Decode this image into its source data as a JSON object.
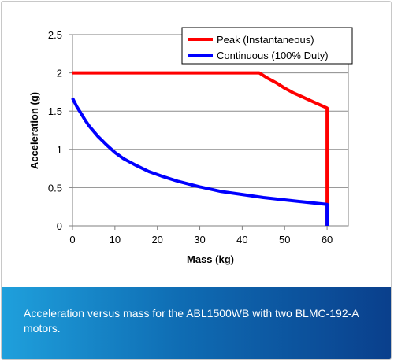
{
  "caption": "Acceleration versus mass for the ABL1500WB with two BLMC-192-A motors.",
  "chart_data": {
    "type": "line",
    "title": "",
    "xlabel": "Mass (kg)",
    "ylabel": "Acceleration (g)",
    "xlim": [
      0,
      65
    ],
    "ylim": [
      0,
      2.5
    ],
    "xticks": [
      "0",
      "10",
      "20",
      "30",
      "40",
      "50",
      "60"
    ],
    "yticks": [
      "0",
      "0.5",
      "1",
      "1.5",
      "2",
      "2.5"
    ],
    "grid": "horizontal",
    "legend_position": "top-right",
    "series": [
      {
        "name": "Peak (Instantaneous)",
        "color": "#ff0000",
        "x": [
          0,
          10,
          20,
          30,
          40,
          44,
          46,
          48,
          50,
          52,
          54,
          56,
          58,
          60,
          60
        ],
        "y": [
          2,
          2,
          2,
          2,
          2,
          2,
          1.93,
          1.87,
          1.8,
          1.74,
          1.69,
          1.64,
          1.59,
          1.54,
          0
        ]
      },
      {
        "name": "Continuous (100% Duty)",
        "color": "#0000ff",
        "x": [
          0,
          1,
          2,
          3,
          4,
          6,
          8,
          10,
          12,
          15,
          18,
          21,
          25,
          30,
          35,
          40,
          45,
          50,
          55,
          60,
          60
        ],
        "y": [
          1.67,
          1.56,
          1.47,
          1.38,
          1.3,
          1.17,
          1.06,
          0.96,
          0.88,
          0.79,
          0.71,
          0.65,
          0.58,
          0.51,
          0.45,
          0.41,
          0.37,
          0.34,
          0.31,
          0.28,
          0
        ]
      }
    ]
  }
}
